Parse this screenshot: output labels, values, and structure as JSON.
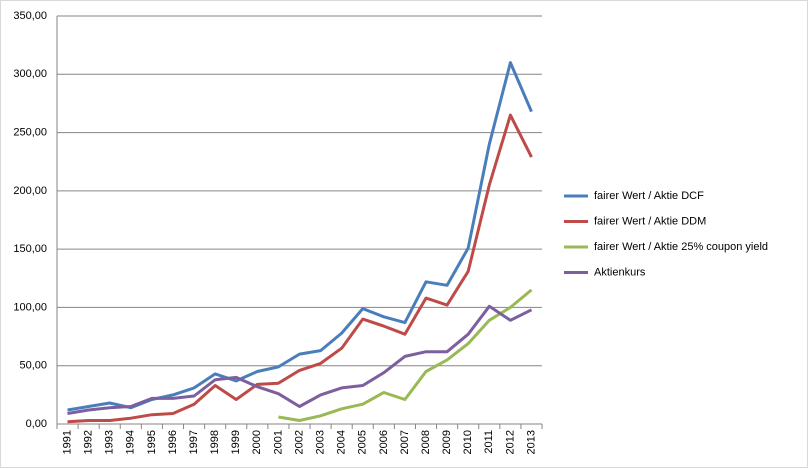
{
  "chart_data": {
    "type": "line",
    "categories": [
      "1991",
      "1992",
      "1993",
      "1994",
      "1995",
      "1996",
      "1997",
      "1998",
      "1999",
      "2000",
      "2001",
      "2002",
      "2003",
      "2004",
      "2005",
      "2006",
      "2007",
      "2008",
      "2009",
      "2010",
      "2011",
      "2012",
      "2013"
    ],
    "series": [
      {
        "name": "fairer Wert / Aktie DCF",
        "color": "#4a7ebb",
        "values": [
          12,
          15,
          18,
          14,
          21,
          25,
          31,
          43,
          37,
          45,
          49,
          60,
          63,
          78,
          99,
          92,
          87,
          122,
          119,
          151,
          240,
          310,
          268
        ]
      },
      {
        "name": "fairer Wert / Aktie DDM",
        "color": "#be4b48",
        "values": [
          2,
          3,
          3,
          5,
          8,
          9,
          17,
          33,
          21,
          34,
          35,
          46,
          52,
          65,
          90,
          84,
          77,
          108,
          102,
          131,
          205,
          265,
          229
        ]
      },
      {
        "name": "fairer Wert / Aktie 25% coupon yield",
        "color": "#98b954",
        "values": [
          null,
          null,
          null,
          null,
          null,
          null,
          null,
          null,
          null,
          null,
          6,
          3,
          7,
          13,
          17,
          27,
          21,
          45,
          55,
          69,
          89,
          100,
          115
        ]
      },
      {
        "name": "Aktienkurs",
        "color": "#7d5fa0",
        "values": [
          9,
          12,
          14,
          15,
          22,
          22,
          24,
          38,
          40,
          32,
          26,
          15,
          25,
          31,
          33,
          44,
          58,
          62,
          62,
          77,
          101,
          89,
          98
        ]
      }
    ],
    "ylim": [
      0,
      350
    ],
    "yticks": [
      {
        "value": 0,
        "label": "0,00"
      },
      {
        "value": 50,
        "label": "50,00"
      },
      {
        "value": 100,
        "label": "100,00"
      },
      {
        "value": 150,
        "label": "150,00"
      },
      {
        "value": 200,
        "label": "200,00"
      },
      {
        "value": 250,
        "label": "250,00"
      },
      {
        "value": 300,
        "label": "300,00"
      },
      {
        "value": 350,
        "label": "350,00"
      }
    ],
    "grid": true,
    "legend": "right"
  }
}
